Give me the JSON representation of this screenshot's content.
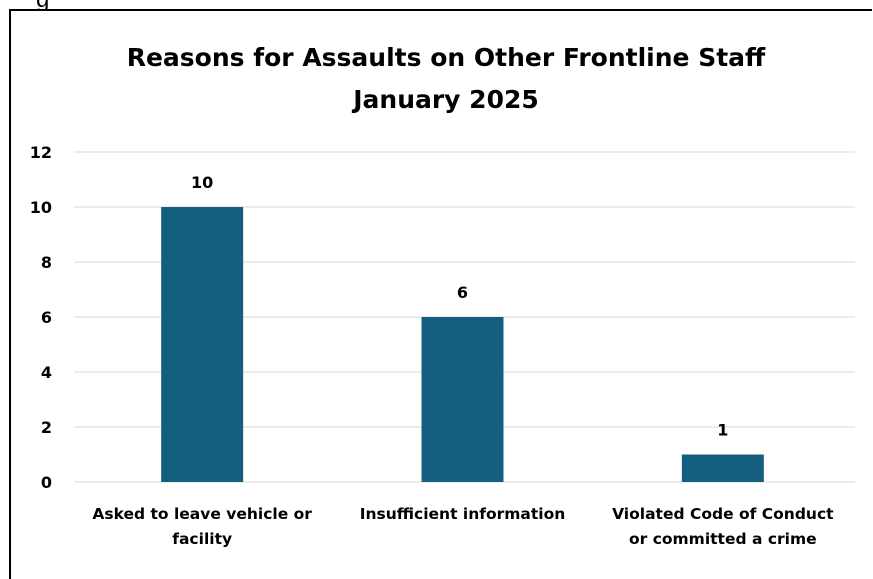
{
  "header_fragment": "g",
  "chart_data": {
    "type": "bar",
    "title": "Reasons for Assaults on Other Frontline Staff",
    "subtitle": "January 2025",
    "categories": [
      "Asked to leave vehicle or facility",
      "Insufficient information",
      "Violated Code of Conduct or committed a crime"
    ],
    "category_lines": [
      [
        "Asked to leave vehicle or",
        "facility"
      ],
      [
        "Insufficient information"
      ],
      [
        "Violated Code of Conduct",
        "or committed a crime"
      ]
    ],
    "values": [
      10,
      6,
      1
    ],
    "data_labels": [
      "10",
      "6",
      "1"
    ],
    "ylim": [
      0,
      12
    ],
    "yticks": [
      0,
      2,
      4,
      6,
      8,
      10,
      12
    ],
    "xlabel": "",
    "ylabel": "",
    "grid": true,
    "legend": "none",
    "colors": {
      "bar": "#145F7F",
      "grid": "#D9D9D9",
      "text": "#000000"
    }
  }
}
